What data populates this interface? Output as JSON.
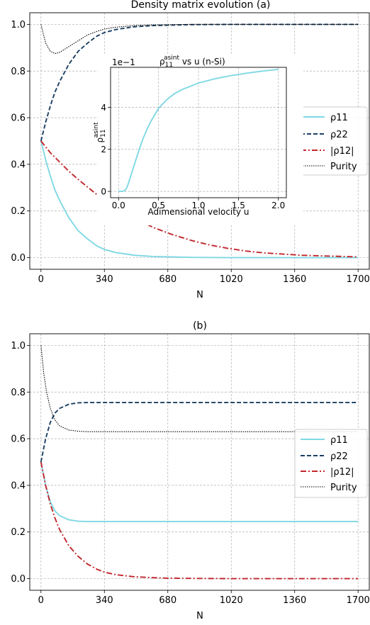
{
  "colors": {
    "rho11": "#7fd8e4",
    "rho22": "#1b3f63",
    "rho12": "#c2262c",
    "purity": "#000000"
  },
  "chart_data": [
    {
      "id": "a",
      "type": "line",
      "title": "Density matrix evolution (a)",
      "xlabel": "N",
      "ylabel": "",
      "xlim": [
        -60,
        1760
      ],
      "ylim": [
        -0.05,
        1.05
      ],
      "xticks": [
        0,
        340,
        680,
        1020,
        1360,
        1700
      ],
      "xtick_labels": [
        "0",
        "340",
        "680",
        "1020",
        "1360",
        "1700"
      ],
      "yticks": [
        0.0,
        0.2,
        0.4,
        0.6,
        0.8,
        1.0
      ],
      "ytick_labels": [
        "0.0",
        "0.2",
        "0.4",
        "0.6",
        "0.8",
        "1.0"
      ],
      "grid": true,
      "legend_position": "center-right",
      "series": [
        {
          "name": "ρ11",
          "style": "solid",
          "x": [
            0,
            25,
            50,
            75,
            100,
            150,
            200,
            250,
            300,
            340,
            400,
            500,
            600,
            800,
            1000,
            1200,
            1700
          ],
          "y": [
            0.5,
            0.42,
            0.35,
            0.29,
            0.245,
            0.17,
            0.115,
            0.08,
            0.05,
            0.035,
            0.022,
            0.01,
            0.005,
            0.001,
            0.0,
            0.0,
            0.0
          ]
        },
        {
          "name": "ρ22",
          "style": "dashed",
          "x": [
            0,
            25,
            50,
            75,
            100,
            150,
            200,
            250,
            300,
            340,
            400,
            500,
            600,
            800,
            1000,
            1200,
            1700
          ],
          "y": [
            0.5,
            0.58,
            0.65,
            0.71,
            0.755,
            0.83,
            0.885,
            0.92,
            0.95,
            0.965,
            0.978,
            0.99,
            0.995,
            0.999,
            1.0,
            1.0,
            1.0
          ]
        },
        {
          "name": "|ρ12|",
          "style": "dashdot",
          "x": [
            0,
            50,
            100,
            150,
            200,
            300,
            400,
            500,
            600,
            700,
            800,
            900,
            1000,
            1100,
            1200,
            1400,
            1700
          ],
          "y": [
            0.5,
            0.45,
            0.41,
            0.37,
            0.335,
            0.27,
            0.215,
            0.17,
            0.13,
            0.1,
            0.075,
            0.055,
            0.04,
            0.028,
            0.02,
            0.01,
            0.003
          ]
        },
        {
          "name": "Purity",
          "style": "dotted",
          "x": [
            0,
            25,
            50,
            75,
            100,
            150,
            200,
            250,
            300,
            340,
            400,
            500,
            600,
            800,
            1000,
            1700
          ],
          "y": [
            1.0,
            0.92,
            0.885,
            0.875,
            0.88,
            0.905,
            0.93,
            0.955,
            0.97,
            0.98,
            0.988,
            0.995,
            0.998,
            1.0,
            1.0,
            1.0
          ]
        }
      ]
    },
    {
      "id": "inset",
      "type": "line",
      "title": "ρ11^asint vs u (n-Si)",
      "title_main": "ρ",
      "title_sub": "11",
      "title_sup": "asint",
      "title_rest": " vs u (n-Si)",
      "offset_text": "1e−1",
      "xlabel": "Adimensional velocity u",
      "ylabel": "ρ11^asint",
      "xlim": [
        -0.1,
        2.1
      ],
      "ylim": [
        -0.3,
        5.9
      ],
      "xticks": [
        0.0,
        0.5,
        1.0,
        1.5,
        2.0
      ],
      "xtick_labels": [
        "0.0",
        "0.5",
        "1.0",
        "1.5",
        "2.0"
      ],
      "yticks": [
        0,
        2,
        4
      ],
      "ytick_labels": [
        "0",
        "2",
        "4"
      ],
      "grid": true,
      "series": [
        {
          "name": "",
          "style": "solid",
          "x": [
            0.0,
            0.05,
            0.08,
            0.1,
            0.12,
            0.15,
            0.2,
            0.25,
            0.3,
            0.35,
            0.4,
            0.5,
            0.6,
            0.7,
            0.8,
            1.0,
            1.2,
            1.4,
            1.6,
            1.8,
            2.0
          ],
          "y": [
            0.0,
            0.0,
            0.05,
            0.15,
            0.35,
            0.7,
            1.3,
            1.9,
            2.45,
            2.9,
            3.3,
            3.95,
            4.35,
            4.65,
            4.85,
            5.15,
            5.35,
            5.5,
            5.62,
            5.72,
            5.8
          ]
        }
      ]
    },
    {
      "id": "b",
      "type": "line",
      "title": "(b)",
      "xlabel": "N",
      "ylabel": "",
      "xlim": [
        -60,
        1760
      ],
      "ylim": [
        -0.05,
        1.05
      ],
      "xticks": [
        0,
        340,
        680,
        1020,
        1360,
        1700
      ],
      "xtick_labels": [
        "0",
        "340",
        "680",
        "1020",
        "1360",
        "1700"
      ],
      "yticks": [
        0.0,
        0.2,
        0.4,
        0.6,
        0.8,
        1.0
      ],
      "ytick_labels": [
        "0.0",
        "0.2",
        "0.4",
        "0.6",
        "0.8",
        "1.0"
      ],
      "grid": true,
      "legend_position": "center-right",
      "series": [
        {
          "name": "ρ11",
          "style": "solid",
          "x": [
            0,
            25,
            50,
            75,
            100,
            150,
            200,
            250,
            300,
            340,
            400,
            500,
            680,
            1020,
            1360,
            1700
          ],
          "y": [
            0.5,
            0.4,
            0.33,
            0.29,
            0.27,
            0.252,
            0.246,
            0.245,
            0.245,
            0.245,
            0.245,
            0.245,
            0.245,
            0.245,
            0.245,
            0.245
          ]
        },
        {
          "name": "ρ22",
          "style": "dashed",
          "x": [
            0,
            25,
            50,
            75,
            100,
            150,
            200,
            250,
            300,
            340,
            400,
            500,
            680,
            1020,
            1360,
            1700
          ],
          "y": [
            0.5,
            0.6,
            0.67,
            0.71,
            0.73,
            0.748,
            0.754,
            0.755,
            0.755,
            0.755,
            0.755,
            0.755,
            0.755,
            0.755,
            0.755,
            0.755
          ]
        },
        {
          "name": "|ρ12|",
          "style": "dashdot",
          "x": [
            0,
            25,
            50,
            75,
            100,
            150,
            200,
            250,
            300,
            340,
            400,
            500,
            600,
            680,
            800,
            1020,
            1360,
            1700
          ],
          "y": [
            0.5,
            0.4,
            0.32,
            0.26,
            0.21,
            0.14,
            0.095,
            0.062,
            0.04,
            0.028,
            0.017,
            0.008,
            0.004,
            0.002,
            0.001,
            0.0,
            0.0,
            0.0
          ]
        },
        {
          "name": "Purity",
          "style": "dotted",
          "x": [
            0,
            15,
            30,
            50,
            75,
            100,
            150,
            200,
            250,
            300,
            340,
            400,
            500,
            680,
            1020,
            1360,
            1700
          ],
          "y": [
            1.0,
            0.88,
            0.8,
            0.73,
            0.68,
            0.655,
            0.637,
            0.632,
            0.63,
            0.63,
            0.63,
            0.63,
            0.63,
            0.63,
            0.63,
            0.63,
            0.63
          ]
        }
      ]
    }
  ]
}
